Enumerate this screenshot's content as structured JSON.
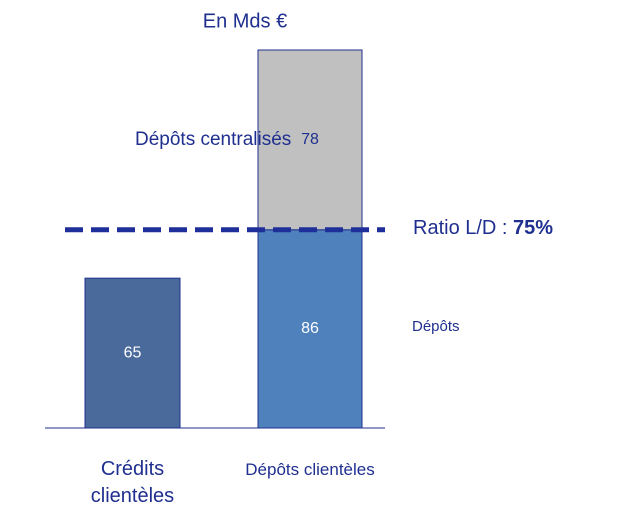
{
  "chart_data": {
    "type": "stacked-bar",
    "title": "En Mds €",
    "categories": [
      "Crédits clientèles",
      "Dépôts clientèles"
    ],
    "series": [
      {
        "name": "Dépôts",
        "colors": [
          "#4a6a9b",
          "#4f81bd"
        ],
        "values": [
          65,
          86
        ]
      },
      {
        "name": "Dépôts centralisés",
        "color": "#c0c0c0",
        "values": [
          null,
          78
        ]
      }
    ],
    "ratio": {
      "label": "Ratio L/D :",
      "value": "75%"
    }
  }
}
